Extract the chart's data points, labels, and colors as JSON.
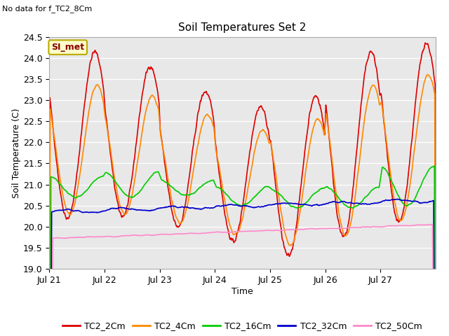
{
  "title": "Soil Temperatures Set 2",
  "xlabel": "Time",
  "ylabel": "Soil Temperature (C)",
  "note": "No data for f_TC2_8Cm",
  "si_met_label": "SI_met",
  "ylim": [
    19.0,
    24.5
  ],
  "yticks": [
    19.0,
    19.5,
    20.0,
    20.5,
    21.0,
    21.5,
    22.0,
    22.5,
    23.0,
    23.5,
    24.0,
    24.5
  ],
  "x_tick_labels": [
    "Jul 21",
    "Jul 22",
    "Jul 23",
    "Jul 24",
    "Jul 25",
    "Jul 26",
    "Jul 27"
  ],
  "fig_bg_color": "#ffffff",
  "plot_bg_color": "#e8e8e8",
  "grid_color": "#ffffff",
  "series_colors": {
    "TC2_2Cm": "#dd0000",
    "TC2_4Cm": "#ff8800",
    "TC2_16Cm": "#00cc00",
    "TC2_32Cm": "#0000cc",
    "TC2_50Cm": "#ff88cc"
  },
  "linewidth": 1.2,
  "title_fontsize": 11,
  "axis_fontsize": 9,
  "tick_fontsize": 9,
  "note_fontsize": 8
}
